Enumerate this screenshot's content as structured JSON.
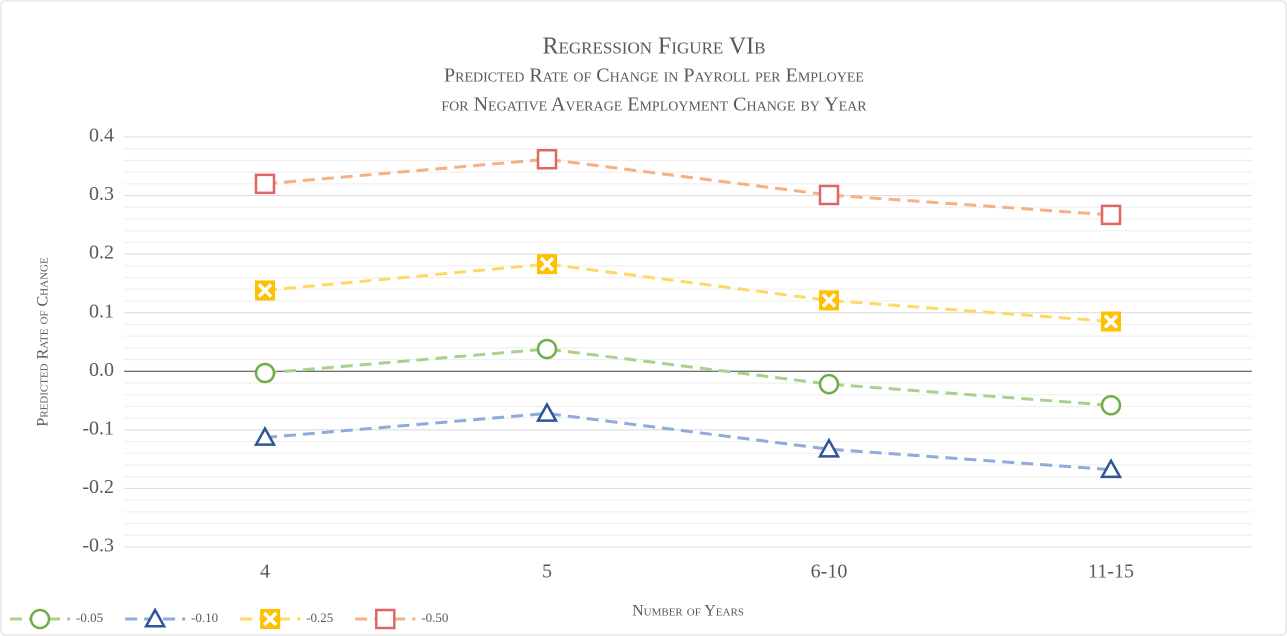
{
  "chart_data": {
    "type": "line",
    "title": "Regression Figure VIb",
    "subtitle": [
      "Predicted Rate of Change in Payroll per Employee",
      "for Negative Average Employment Change by Year"
    ],
    "x_label": "Number of Years",
    "y_label": "Predicted Rate of Change",
    "categories": [
      "4",
      "5",
      "6-10",
      "11-15"
    ],
    "series": [
      {
        "name": "-0.05",
        "color": "#a9d18e",
        "marker_color": "#70ad47",
        "marker": "circle",
        "values": [
          -0.003,
          0.038,
          -0.022,
          -0.058
        ]
      },
      {
        "name": "-0.10",
        "color": "#8faadc",
        "marker_color": "#2f5597",
        "marker": "triangle",
        "values": [
          -0.113,
          -0.072,
          -0.133,
          -0.168
        ]
      },
      {
        "name": "-0.25",
        "color": "#ffd966",
        "marker_color": "#ffc000",
        "marker": "x-square",
        "values": [
          0.138,
          0.183,
          0.121,
          0.085
        ]
      },
      {
        "name": "-0.50",
        "color": "#f4b183",
        "marker_color": "#e06666",
        "marker": "square",
        "values": [
          0.32,
          0.362,
          0.301,
          0.267
        ]
      }
    ],
    "ylim": [
      -0.3,
      0.4
    ],
    "yticks": [
      -0.3,
      -0.2,
      -0.1,
      {
        "value": 0,
        "label": "0.0"
      },
      0.1,
      0.2,
      0.3,
      0.4
    ],
    "grid": true,
    "minor_grid": true,
    "legend": "bottom-left"
  }
}
